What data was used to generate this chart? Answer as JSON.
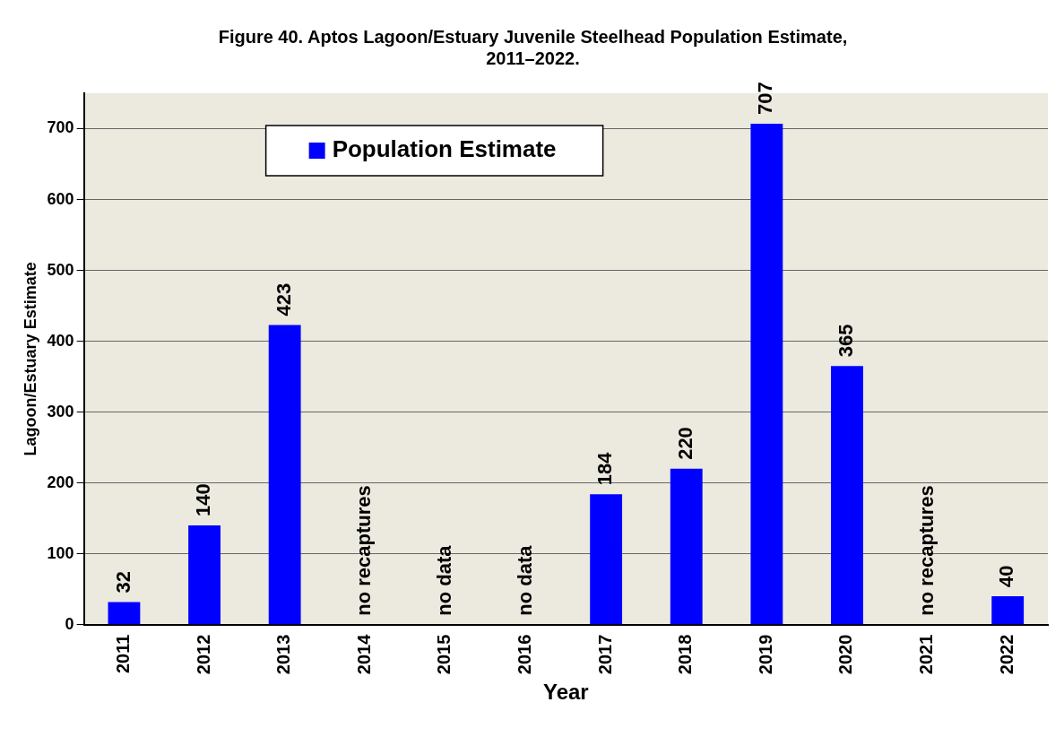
{
  "chart_data": {
    "type": "bar",
    "title": "Figure 40. Aptos Lagoon/Estuary Juvenile Steelhead Population Estimate,\n2011–2022.",
    "xlabel": "Year",
    "ylabel": "Lagoon/Estuary Estimate",
    "categories": [
      "2011",
      "2012",
      "2013",
      "2014",
      "2015",
      "2016",
      "2017",
      "2018",
      "2019",
      "2020",
      "2021",
      "2022"
    ],
    "series": [
      {
        "name": "Population Estimate",
        "color": "#0000ff",
        "values": [
          32,
          140,
          423,
          null,
          null,
          null,
          184,
          220,
          707,
          365,
          null,
          40
        ],
        "value_labels": [
          "32",
          "140",
          "423",
          "no recaptures",
          "no data",
          "no data",
          "184",
          "220",
          "707",
          "365",
          "no recaptures",
          "40"
        ]
      }
    ],
    "ylim": [
      0,
      750
    ],
    "yticks": [
      0,
      100,
      200,
      300,
      400,
      500,
      600,
      700
    ],
    "grid": "y",
    "legend": "top left"
  }
}
